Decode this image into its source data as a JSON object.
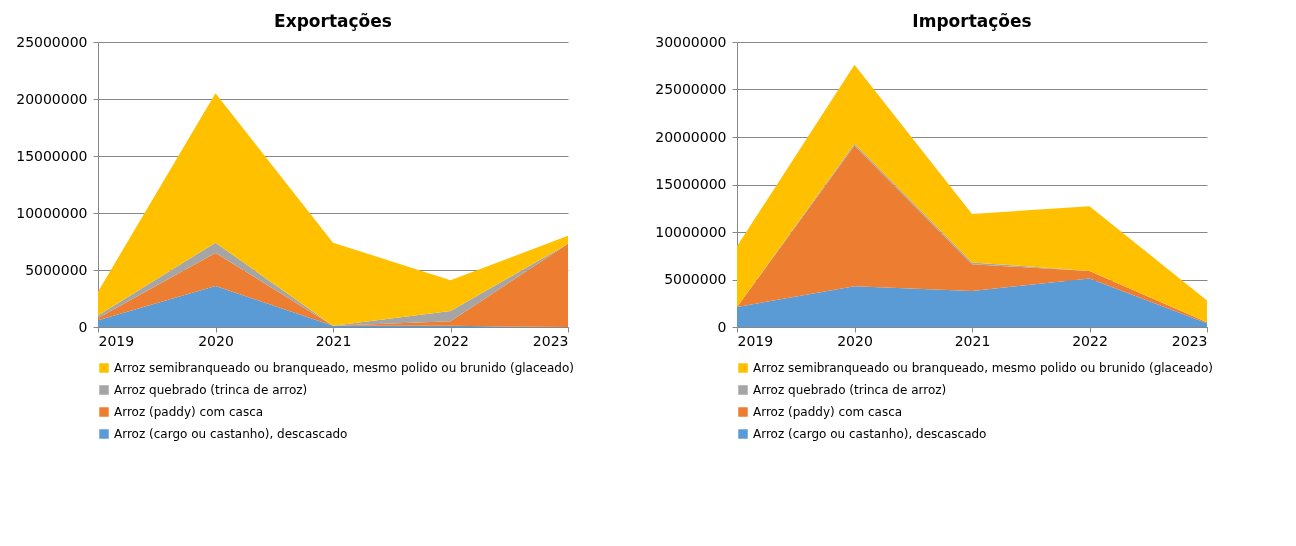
{
  "chart_data": [
    {
      "type": "area",
      "title": "Exportações",
      "categories": [
        "2019",
        "2020",
        "2021",
        "2022",
        "2023"
      ],
      "stacked": true,
      "ylim": [
        0,
        25000000
      ],
      "yticks": [
        0,
        5000000,
        10000000,
        15000000,
        20000000,
        25000000
      ],
      "grid": "y",
      "legend": "bottom",
      "series": [
        {
          "name": "Arroz (cargo ou castanho), descascado",
          "color": "#5b9bd5",
          "values": [
            600000,
            3600000,
            100000,
            100000,
            0
          ]
        },
        {
          "name": "Arroz (paddy) com casca",
          "color": "#ed7d31",
          "values": [
            200000,
            2900000,
            0,
            400000,
            7300000
          ]
        },
        {
          "name": "Arroz quebrado (trinca de arroz)",
          "color": "#a5a5a5",
          "values": [
            200000,
            900000,
            0,
            900000,
            0
          ]
        },
        {
          "name": "Arroz semibranqueado ou branqueado, mesmo polido ou brunido (glaceado)",
          "color": "#ffc000",
          "values": [
            2100000,
            13100000,
            7300000,
            2700000,
            700000
          ]
        }
      ]
    },
    {
      "type": "area",
      "title": "Importações",
      "categories": [
        "2019",
        "2020",
        "2021",
        "2022",
        "2023"
      ],
      "stacked": true,
      "ylim": [
        0,
        30000000
      ],
      "yticks": [
        0,
        5000000,
        10000000,
        15000000,
        20000000,
        25000000,
        30000000
      ],
      "grid": "y",
      "legend": "bottom",
      "series": [
        {
          "name": "Arroz (cargo ou castanho), descascado",
          "color": "#5b9bd5",
          "values": [
            2100000,
            4300000,
            3800000,
            5100000,
            400000
          ]
        },
        {
          "name": "Arroz (paddy) com casca",
          "color": "#ed7d31",
          "values": [
            0,
            14800000,
            2800000,
            800000,
            100000
          ]
        },
        {
          "name": "Arroz quebrado (trinca de arroz)",
          "color": "#a5a5a5",
          "values": [
            0,
            200000,
            200000,
            0,
            0
          ]
        },
        {
          "name": "Arroz semibranqueado ou branqueado, mesmo polido ou brunido (glaceado)",
          "color": "#ffc000",
          "values": [
            6400000,
            8300000,
            5100000,
            6800000,
            2300000
          ]
        }
      ]
    }
  ]
}
